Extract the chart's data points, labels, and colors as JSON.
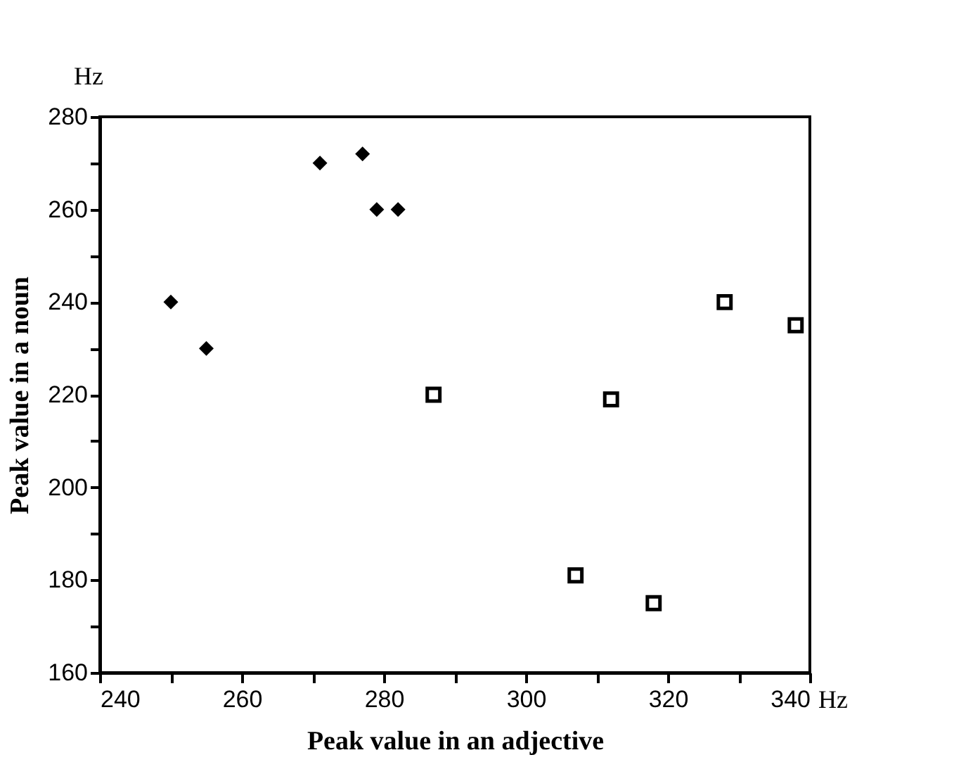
{
  "chart_data": {
    "type": "scatter",
    "xlabel": "Peak value in an adjective",
    "ylabel": "Peak value in a noun",
    "annotations": [
      "Hz",
      "Hz"
    ],
    "series": [
      {
        "color": "#000000",
        "marker": "diamond",
        "x": [
          250,
          255,
          271,
          277,
          279,
          282
        ],
        "values": [
          240,
          230,
          270,
          272,
          260,
          260
        ]
      },
      {
        "color": "#000000",
        "marker": "square",
        "x": [
          287,
          307,
          312,
          318,
          328,
          338
        ],
        "values": [
          220,
          181,
          219,
          175,
          240,
          235
        ]
      }
    ],
    "xlim": [
      240,
      340
    ],
    "ylim": [
      160,
      280
    ],
    "xticks": [
      240,
      {
        "value": 250,
        "label": null
      },
      260,
      {
        "value": 270,
        "label": null
      },
      280,
      {
        "value": 290,
        "label": null
      },
      300,
      {
        "value": 310,
        "label": null
      },
      320,
      {
        "value": 330,
        "label": null
      },
      340
    ],
    "yticks": [
      160,
      {
        "value": 170,
        "label": null
      },
      180,
      {
        "value": 190,
        "label": null
      },
      200,
      {
        "value": 210,
        "label": null
      },
      220,
      {
        "value": 230,
        "label": null
      },
      240,
      {
        "value": 250,
        "label": null
      },
      260,
      {
        "value": 270,
        "label": null
      },
      280
    ],
    "grid": false
  }
}
